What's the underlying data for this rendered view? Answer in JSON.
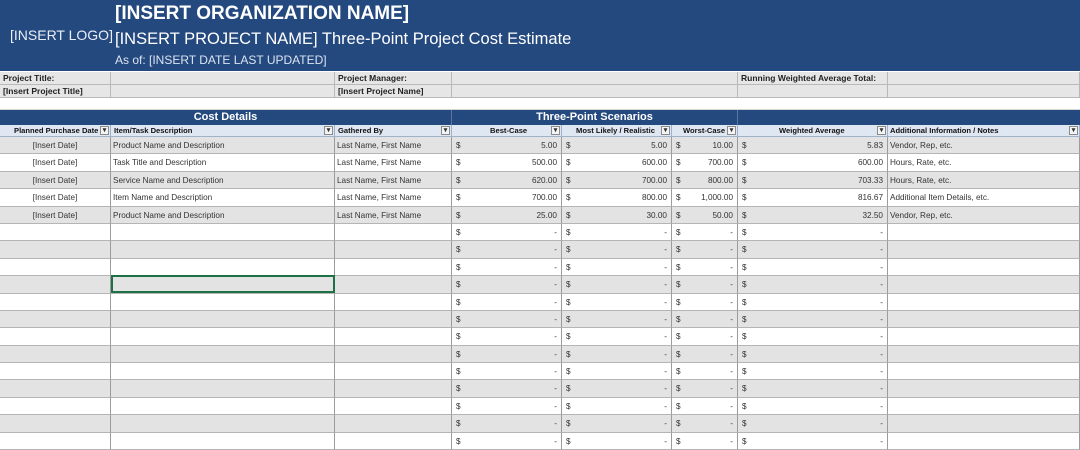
{
  "header": {
    "logo": "[INSERT LOGO]",
    "organization": "[INSERT ORGANIZATION NAME]",
    "project_line": "[INSERT PROJECT NAME] Three-Point Project Cost Estimate",
    "as_of": "As of: [INSERT DATE LAST UPDATED]"
  },
  "info": {
    "project_title_label": "Project Title:",
    "project_title_value": "[Insert Project Title]",
    "project_manager_label": "Project Manager:",
    "project_manager_value": "[Insert Project Name]",
    "running_total_label": "Running Weighted Average Total:"
  },
  "sections": {
    "cost_details": "Cost Details",
    "three_point": "Three-Point Scenarios"
  },
  "columns": {
    "date": "Planned Purchase Date",
    "item": "Item/Task Description",
    "gathered": "Gathered By",
    "best": "Best-Case",
    "likely": "Most Likely / Realistic",
    "worst": "Worst-Case",
    "weighted": "Weighted Average",
    "notes": "Additional Information / Notes"
  },
  "currency_symbol": "$",
  "empty_amount": "-",
  "dropdown_glyph": "▾",
  "rows": [
    {
      "date": "[Insert Date]",
      "item": "Product Name and Description",
      "gathered": "Last Name, First Name",
      "best": "5.00",
      "likely": "5.00",
      "worst": "10.00",
      "weighted": "5.83",
      "notes": "Vendor, Rep, etc."
    },
    {
      "date": "[Insert Date]",
      "item": "Task Title and Description",
      "gathered": "Last Name, First Name",
      "best": "500.00",
      "likely": "600.00",
      "worst": "700.00",
      "weighted": "600.00",
      "notes": "Hours, Rate, etc."
    },
    {
      "date": "[Insert Date]",
      "item": "Service Name and Description",
      "gathered": "Last Name, First Name",
      "best": "620.00",
      "likely": "700.00",
      "worst": "800.00",
      "weighted": "703.33",
      "notes": "Hours, Rate, etc."
    },
    {
      "date": "[Insert Date]",
      "item": "Item Name and Description",
      "gathered": "Last Name, First Name",
      "best": "700.00",
      "likely": "800.00",
      "worst": "1,000.00",
      "weighted": "816.67",
      "notes": "Additional Item Details, etc."
    },
    {
      "date": "[Insert Date]",
      "item": "Product Name and Description",
      "gathered": "Last Name, First Name",
      "best": "25.00",
      "likely": "30.00",
      "worst": "50.00",
      "weighted": "32.50",
      "notes": "Vendor, Rep, etc."
    },
    {
      "date": "",
      "item": "",
      "gathered": "",
      "best": "-",
      "likely": "-",
      "worst": "-",
      "weighted": "-",
      "notes": ""
    },
    {
      "date": "",
      "item": "",
      "gathered": "",
      "best": "-",
      "likely": "-",
      "worst": "-",
      "weighted": "-",
      "notes": ""
    },
    {
      "date": "",
      "item": "",
      "gathered": "",
      "best": "-",
      "likely": "-",
      "worst": "-",
      "weighted": "-",
      "notes": ""
    },
    {
      "date": "",
      "item": "",
      "gathered": "",
      "best": "-",
      "likely": "-",
      "worst": "-",
      "weighted": "-",
      "notes": ""
    },
    {
      "date": "",
      "item": "",
      "gathered": "",
      "best": "-",
      "likely": "-",
      "worst": "-",
      "weighted": "-",
      "notes": ""
    },
    {
      "date": "",
      "item": "",
      "gathered": "",
      "best": "-",
      "likely": "-",
      "worst": "-",
      "weighted": "-",
      "notes": ""
    },
    {
      "date": "",
      "item": "",
      "gathered": "",
      "best": "-",
      "likely": "-",
      "worst": "-",
      "weighted": "-",
      "notes": ""
    },
    {
      "date": "",
      "item": "",
      "gathered": "",
      "best": "-",
      "likely": "-",
      "worst": "-",
      "weighted": "-",
      "notes": ""
    },
    {
      "date": "",
      "item": "",
      "gathered": "",
      "best": "-",
      "likely": "-",
      "worst": "-",
      "weighted": "-",
      "notes": ""
    },
    {
      "date": "",
      "item": "",
      "gathered": "",
      "best": "-",
      "likely": "-",
      "worst": "-",
      "weighted": "-",
      "notes": ""
    },
    {
      "date": "",
      "item": "",
      "gathered": "",
      "best": "-",
      "likely": "-",
      "worst": "-",
      "weighted": "-",
      "notes": ""
    },
    {
      "date": "",
      "item": "",
      "gathered": "",
      "best": "-",
      "likely": "-",
      "worst": "-",
      "weighted": "-",
      "notes": ""
    },
    {
      "date": "",
      "item": "",
      "gathered": "",
      "best": "-",
      "likely": "-",
      "worst": "-",
      "weighted": "-",
      "notes": ""
    }
  ]
}
